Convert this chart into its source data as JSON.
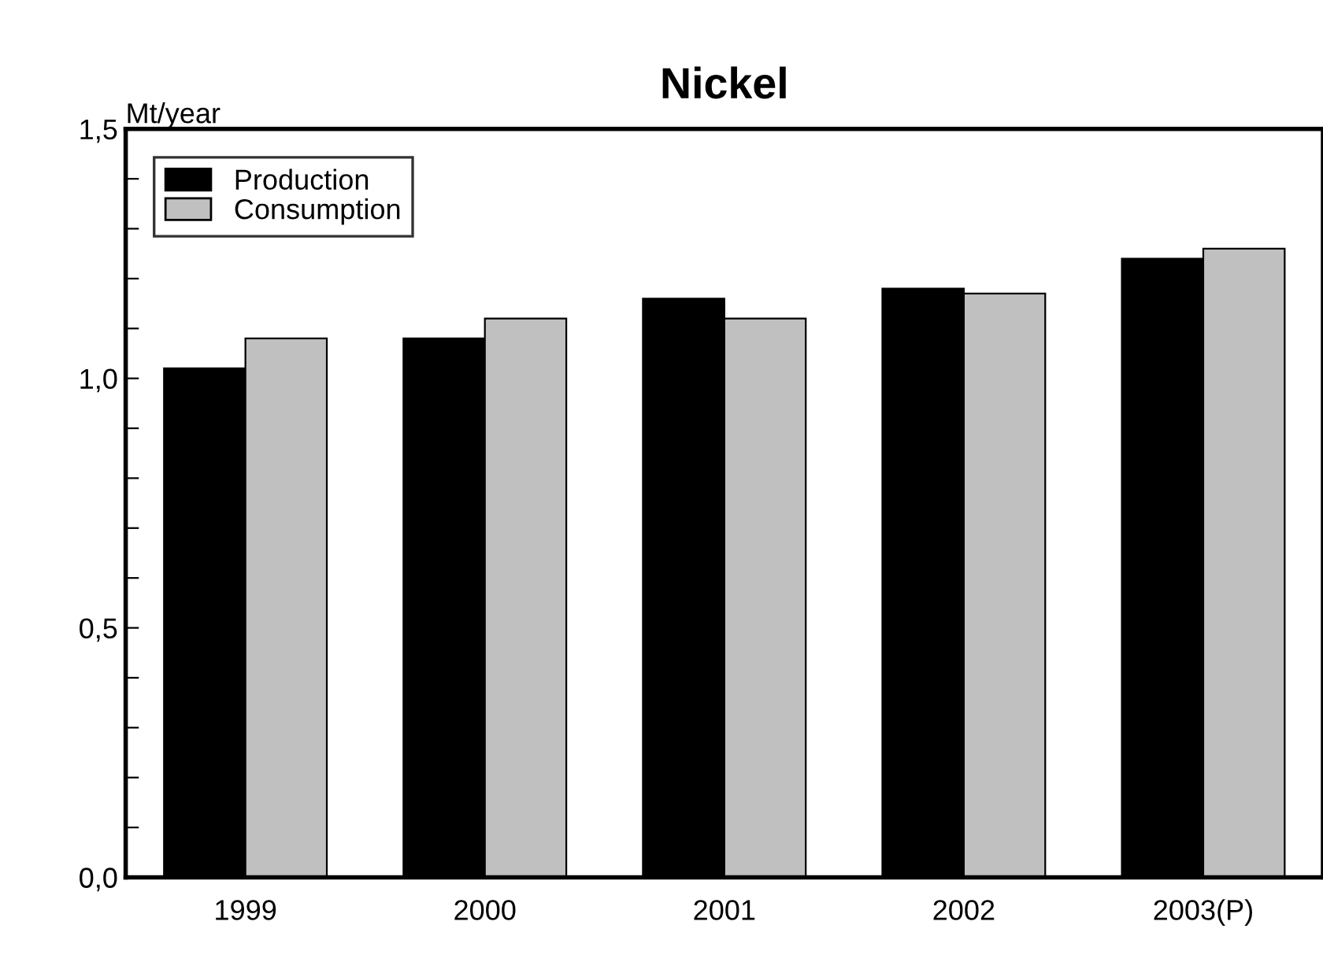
{
  "chart_data": {
    "type": "bar",
    "title": "Nickel",
    "ylabel": "Mt/year",
    "categories": [
      "1999",
      "2000",
      "2001",
      "2002",
      "2003(P)"
    ],
    "series": [
      {
        "name": "Production",
        "color": "#000000",
        "values": [
          1.02,
          1.08,
          1.16,
          1.18,
          1.24
        ]
      },
      {
        "name": "Consumption",
        "color": "#c0c0c0",
        "values": [
          1.08,
          1.12,
          1.12,
          1.17,
          1.26
        ]
      }
    ],
    "ylim": [
      0,
      1.5
    ],
    "yticks": [
      {
        "value": 0,
        "label": "0,0"
      },
      {
        "value": 0.1,
        "label": null
      },
      {
        "value": 0.2,
        "label": null
      },
      {
        "value": 0.3,
        "label": null
      },
      {
        "value": 0.4,
        "label": null
      },
      {
        "value": 0.5,
        "label": "0,5"
      },
      {
        "value": 0.6,
        "label": null
      },
      {
        "value": 0.7,
        "label": null
      },
      {
        "value": 0.8,
        "label": null
      },
      {
        "value": 0.9,
        "label": null
      },
      {
        "value": 1.0,
        "label": "1,0"
      },
      {
        "value": 1.1,
        "label": null
      },
      {
        "value": 1.2,
        "label": null
      },
      {
        "value": 1.3,
        "label": null
      },
      {
        "value": 1.4,
        "label": null
      },
      {
        "value": 1.5,
        "label": "1,5"
      }
    ],
    "grid": false,
    "legend": "top left"
  }
}
